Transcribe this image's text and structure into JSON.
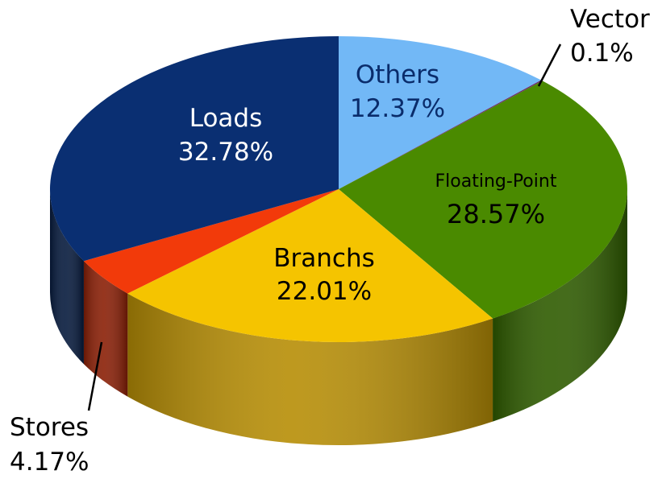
{
  "chart_data": {
    "type": "pie",
    "title": "",
    "slices": [
      {
        "name": "Others",
        "value": 12.37,
        "label_name": "Others",
        "label_value": "12.37%",
        "color": "#72b8f6",
        "side_color": "#4f86b8",
        "label_color": "#0a2c6b"
      },
      {
        "name": "Vector",
        "value": 0.1,
        "label_name": "Vector",
        "label_value": "0.1%",
        "color": "#6b2d6b",
        "side_color": "#4a1f4a",
        "label_color": "#000000"
      },
      {
        "name": "Floating-Point",
        "value": 28.57,
        "label_name": "Floating-Point",
        "label_value": "28.57%",
        "color": "#4a8a00",
        "side_color": "#2f5c00",
        "label_color": "#000000"
      },
      {
        "name": "Branchs",
        "value": 22.01,
        "label_name": "Branchs",
        "label_value": "22.01%",
        "color": "#f5c400",
        "side_color": "#b78e06",
        "label_color": "#000000"
      },
      {
        "name": "Stores",
        "value": 4.17,
        "label_name": "Stores",
        "label_value": "4.17%",
        "color": "#f23a0a",
        "side_color": "#8a1f06",
        "label_color": "#000000"
      },
      {
        "name": "Loads",
        "value": 32.78,
        "label_name": "Loads",
        "label_value": "32.78%",
        "color": "#0a2f72",
        "side_color": "#061a3d",
        "label_color": "#ffffff"
      }
    ]
  }
}
